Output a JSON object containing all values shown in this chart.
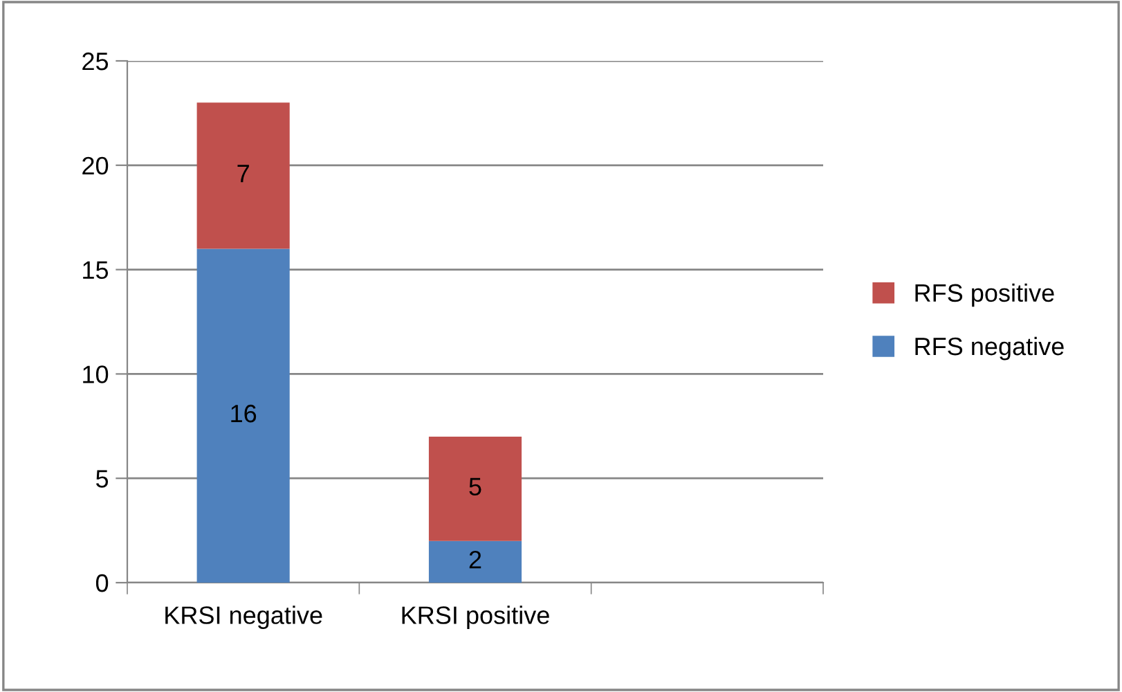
{
  "chart_data": {
    "type": "bar",
    "categories": [
      "KRSI negative",
      "KRSI positive",
      null
    ],
    "stacked": true,
    "series": [
      {
        "name": "RFS negative",
        "color": "#4f81bd",
        "values": [
          16,
          2,
          null
        ]
      },
      {
        "name": "RFS positive",
        "color": "#c0504d",
        "values": [
          7,
          5,
          null
        ]
      }
    ],
    "ylim": [
      0,
      25
    ],
    "yticks": [
      0,
      5,
      10,
      15,
      20,
      25
    ],
    "grid": "y",
    "legend": "right",
    "data_labels": true
  }
}
